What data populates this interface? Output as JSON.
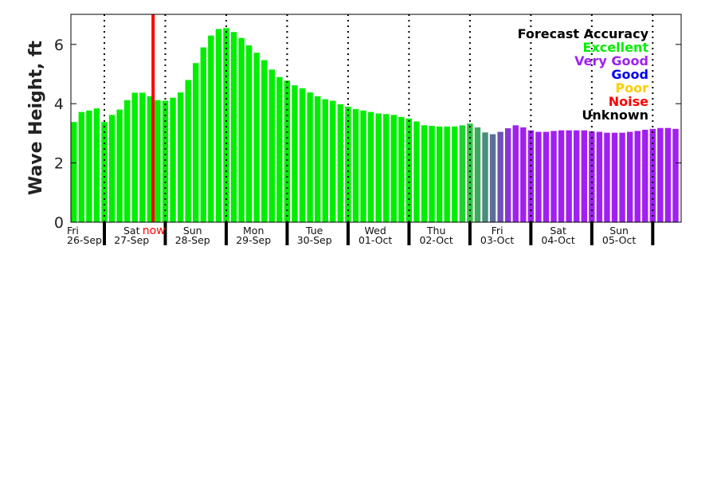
{
  "chart_data": {
    "type": "bar",
    "ylabel": "Wave Height, ft",
    "ylim": [
      0,
      7
    ],
    "yticks": [
      0,
      2,
      4,
      6
    ],
    "interval_hours": 3,
    "now_label": "now",
    "days": [
      {
        "day": "Fri",
        "date": "26-Sep"
      },
      {
        "day": "Sat",
        "date": "27-Sep"
      },
      {
        "day": "Sun",
        "date": "28-Sep"
      },
      {
        "day": "Mon",
        "date": "29-Sep"
      },
      {
        "day": "Tue",
        "date": "30-Sep"
      },
      {
        "day": "Wed",
        "date": "01-Oct"
      },
      {
        "day": "Thu",
        "date": "02-Oct"
      },
      {
        "day": "Fri",
        "date": "03-Oct"
      },
      {
        "day": "Sat",
        "date": "04-Oct"
      },
      {
        "day": "Sun",
        "date": "05-Oct"
      }
    ],
    "values": [
      3.38,
      3.72,
      3.77,
      3.84,
      3.38,
      3.62,
      3.8,
      4.12,
      4.37,
      4.37,
      4.25,
      4.12,
      4.1,
      4.2,
      4.38,
      4.8,
      5.37,
      5.9,
      6.3,
      6.52,
      6.55,
      6.42,
      6.22,
      5.97,
      5.72,
      5.47,
      5.15,
      4.9,
      4.78,
      4.62,
      4.52,
      4.38,
      4.25,
      4.15,
      4.1,
      3.98,
      3.9,
      3.82,
      3.77,
      3.72,
      3.67,
      3.65,
      3.62,
      3.55,
      3.5,
      3.4,
      3.27,
      3.25,
      3.23,
      3.23,
      3.23,
      3.27,
      3.33,
      3.2,
      3.03,
      2.97,
      3.05,
      3.17,
      3.27,
      3.2,
      3.1,
      3.05,
      3.05,
      3.08,
      3.1,
      3.1,
      3.1,
      3.1,
      3.07,
      3.05,
      3.02,
      3.02,
      3.02,
      3.05,
      3.08,
      3.12,
      3.15,
      3.18,
      3.18,
      3.15
    ],
    "bar_colors": {
      "default_excellent": "#00ee00",
      "very_good": "#a020f0",
      "transition": [
        "#22d030",
        "#2cc83c",
        "#3fa860",
        "#4b8d7a",
        "#5b6e98",
        "#7050b8",
        "#8a35d4"
      ]
    },
    "transition_start_index": 51,
    "now_index": 10.4,
    "legend": {
      "title": "Forecast Accuracy",
      "placement": "top-right",
      "items": [
        {
          "label": "Excellent",
          "color": "#00ee00"
        },
        {
          "label": "Very Good",
          "color": "#a020f0"
        },
        {
          "label": "Good",
          "color": "#0000ee"
        },
        {
          "label": "Poor",
          "color": "#ffcc00"
        },
        {
          "label": "Noise",
          "color": "#ff0000"
        },
        {
          "label": "Unknown",
          "color": "#000000"
        }
      ]
    }
  }
}
